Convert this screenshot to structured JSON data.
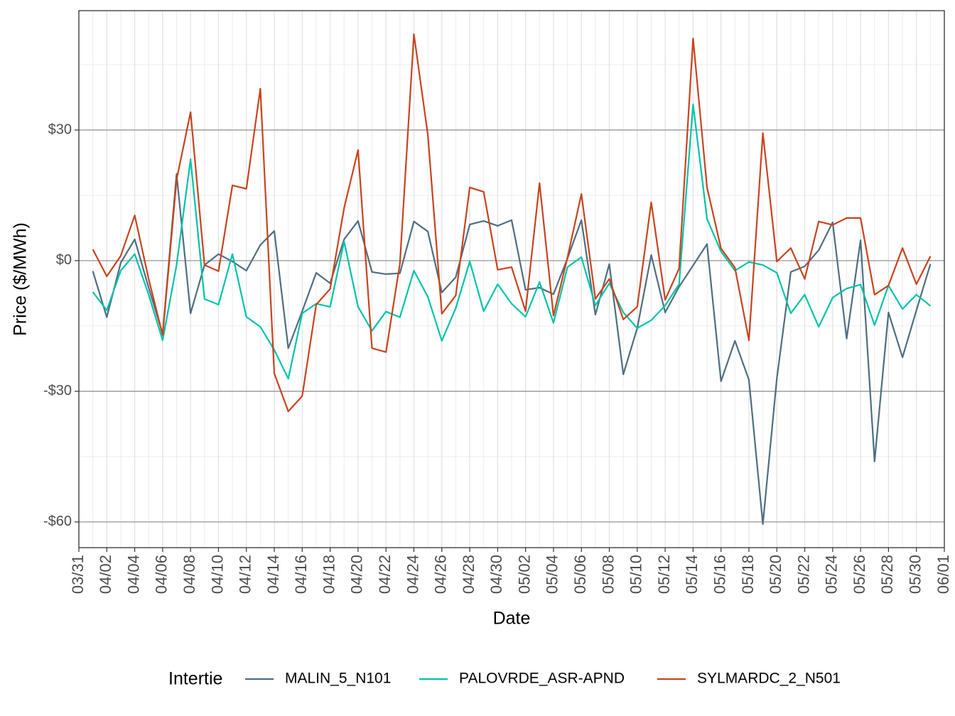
{
  "chart_data": {
    "type": "line",
    "x_label": "Date",
    "y_label": "Price ($/MWh)",
    "legend_title": "Intertie",
    "legend": "bottom",
    "grid": true,
    "x": [
      "04/01",
      "04/02",
      "04/03",
      "04/04",
      "04/05",
      "04/06",
      "04/07",
      "04/08",
      "04/09",
      "04/10",
      "04/11",
      "04/12",
      "04/13",
      "04/14",
      "04/15",
      "04/16",
      "04/17",
      "04/18",
      "04/19",
      "04/20",
      "04/21",
      "04/22",
      "04/23",
      "04/24",
      "04/25",
      "04/26",
      "04/27",
      "04/28",
      "04/29",
      "04/30",
      "05/01",
      "05/02",
      "05/03",
      "05/04",
      "05/05",
      "05/06",
      "05/07",
      "05/08",
      "05/09",
      "05/10",
      "05/11",
      "05/12",
      "05/13",
      "05/14",
      "05/15",
      "05/16",
      "05/17",
      "05/18",
      "05/19",
      "05/20",
      "05/21",
      "05/22",
      "05/23",
      "05/24",
      "05/25",
      "05/26",
      "05/27",
      "05/28",
      "05/29",
      "05/30",
      "05/31"
    ],
    "xlim": [
      "03/31",
      "06/01"
    ],
    "xticks": [
      "03/31",
      "04/02",
      "04/04",
      "04/06",
      "04/08",
      "04/10",
      "04/12",
      "04/14",
      "04/16",
      "04/18",
      "04/20",
      "04/22",
      "04/24",
      "04/26",
      "04/28",
      "04/30",
      "05/02",
      "05/04",
      "05/06",
      "05/08",
      "05/10",
      "05/12",
      "05/14",
      "05/16",
      "05/18",
      "05/20",
      "05/22",
      "05/24",
      "05/26",
      "05/28",
      "05/30",
      "06/01"
    ],
    "ylim": [
      -65.9,
      57.4
    ],
    "yticks": [
      {
        "value": -60,
        "label": "-$60"
      },
      {
        "value": -30,
        "label": "-$30"
      },
      {
        "value": 0,
        "label": "$0"
      },
      {
        "value": 30,
        "label": "$30"
      }
    ],
    "series": [
      {
        "name": "MALIN_5_N101",
        "color": "#4e6e81",
        "values": [
          -2.4,
          -13,
          -0.5,
          4.9,
          -6.2,
          -16.8,
          19.9,
          -12.1,
          -1,
          1.5,
          -0.2,
          -2.3,
          3.6,
          6.8,
          -20.1,
          -11.6,
          -2.8,
          -5.2,
          4.9,
          9.1,
          -2.6,
          -3.1,
          -2.9,
          9,
          6.7,
          -7.3,
          -3.8,
          8.3,
          9.1,
          8,
          9.3,
          -6.7,
          -6.2,
          -7.7,
          0.5,
          9.3,
          -12.4,
          -0.8,
          -26.1,
          -15.5,
          1.3,
          -11.9,
          -6,
          -1.1,
          3.8,
          -27.7,
          -18.4,
          -27.4,
          -60.5,
          -27,
          -2.6,
          -1.3,
          2.4,
          8.8,
          -17.9,
          4.7,
          -46.1,
          -11.9,
          -22.2,
          -11.4,
          -0.8
        ]
      },
      {
        "name": "PALOVRDE_ASR-APND",
        "color": "#00c4aa",
        "values": [
          -7.2,
          -11.4,
          -2.3,
          1.5,
          -7.8,
          -18.3,
          -1,
          23.3,
          -8.8,
          -10.1,
          1.5,
          -12.9,
          -15.2,
          -20.5,
          -27.1,
          -12.1,
          -9.9,
          -10.6,
          4.4,
          -10.6,
          -16.1,
          -11.7,
          -13,
          -2.3,
          -8.3,
          -18.4,
          -10.9,
          -0.2,
          -11.6,
          -5.4,
          -9.9,
          -12.9,
          -4.9,
          -14.3,
          -1.5,
          0.8,
          -10.3,
          -5.2,
          -11.9,
          -15.5,
          -13.7,
          -10.3,
          -5.4,
          35.9,
          9.6,
          2.1,
          -2.3,
          -0.3,
          -1,
          -2.8,
          -12.1,
          -7.8,
          -15.2,
          -8.5,
          -6.4,
          -5.5,
          -14.8,
          -5.7,
          -11.1,
          -7.8,
          -10.4
        ]
      },
      {
        "name": "SYLMARDC_2_N501",
        "color": "#c8431e",
        "values": [
          2.6,
          -3.6,
          1.1,
          10.4,
          -4.2,
          -17.1,
          18.6,
          34.1,
          -1,
          -2.4,
          17.3,
          16.5,
          39.5,
          -25.9,
          -34.6,
          -31.1,
          -10.1,
          -6.5,
          12.1,
          25.4,
          -20.1,
          -21,
          -0.7,
          52,
          28.9,
          -12.2,
          -8,
          16.8,
          15.8,
          -2.1,
          -1.5,
          -11.6,
          17.8,
          -12.6,
          0.7,
          15.3,
          -8.8,
          -4.2,
          -13.5,
          -10.6,
          13.4,
          -9,
          -1.8,
          51,
          16.8,
          2.8,
          -1.6,
          -18.3,
          29.3,
          -0.2,
          2.9,
          -4.2,
          9,
          8.2,
          9.8,
          9.8,
          -7.8,
          -5.7,
          2.9,
          -5.4,
          1
        ]
      }
    ]
  }
}
